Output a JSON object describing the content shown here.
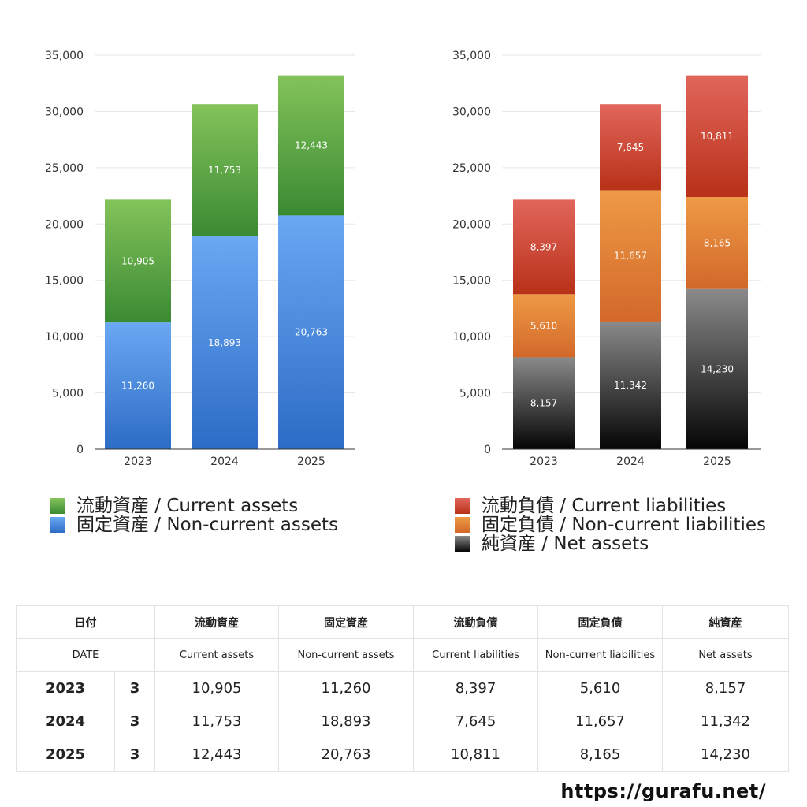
{
  "chart_data": [
    {
      "type": "bar",
      "stacked": true,
      "categories": [
        "2023",
        "2024",
        "2025"
      ],
      "ylim": [
        0,
        35000
      ],
      "yticks": [
        0,
        5000,
        10000,
        15000,
        20000,
        25000,
        30000,
        35000
      ],
      "grid": true,
      "series": [
        {
          "name": "固定資産 / Non-current assets",
          "values": [
            11260,
            18893,
            20763
          ],
          "color_top": "#6aa8f3",
          "color_bottom": "#2d6cc5"
        },
        {
          "name": "流動資産 / Current assets",
          "values": [
            10905,
            11753,
            12443
          ],
          "color_top": "#84c35a",
          "color_bottom": "#3a8a33"
        }
      ]
    },
    {
      "type": "bar",
      "stacked": true,
      "categories": [
        "2023",
        "2024",
        "2025"
      ],
      "ylim": [
        0,
        35000
      ],
      "yticks": [
        0,
        5000,
        10000,
        15000,
        20000,
        25000,
        30000,
        35000
      ],
      "grid": true,
      "series": [
        {
          "name": "純資産 / Net assets",
          "values": [
            8157,
            11342,
            14230
          ],
          "color_top": "#8a8a8a",
          "color_bottom": "#050505"
        },
        {
          "name": "固定負債 / Non-current liabilities",
          "values": [
            5610,
            11657,
            8165
          ],
          "color_top": "#ee9a45",
          "color_bottom": "#d2682a"
        },
        {
          "name": "流動負債 / Current liabilities",
          "values": [
            8397,
            7645,
            10811
          ],
          "color_top": "#e2665c",
          "color_bottom": "#b83118"
        }
      ]
    }
  ],
  "legends": {
    "assets": [
      {
        "label": "流動資産 / Current assets",
        "color_top": "#84c35a",
        "color_bottom": "#3a8a33"
      },
      {
        "label": "固定資産 / Non-current assets",
        "color_top": "#6aa8f3",
        "color_bottom": "#2d6cc5"
      }
    ],
    "liabilities": [
      {
        "label": "流動負債 / Current liabilities",
        "color_top": "#e2665c",
        "color_bottom": "#b83118"
      },
      {
        "label": "固定負債 / Non-current liabilities",
        "color_top": "#ee9a45",
        "color_bottom": "#d2682a"
      },
      {
        "label": "純資産 / Net assets",
        "color_top": "#8a8a8a",
        "color_bottom": "#050505"
      }
    ]
  },
  "table": {
    "header_jp": [
      "日付",
      "流動資産",
      "固定資産",
      "流動負債",
      "固定負債",
      "純資産"
    ],
    "header_en": [
      "DATE",
      "Current assets",
      "Non-current assets",
      "Current liabilities",
      "Non-current liabilities",
      "Net assets"
    ],
    "rows": [
      {
        "year": "2023",
        "month": "3",
        "values": [
          "10,905",
          "11,260",
          "8,397",
          "5,610",
          "8,157"
        ]
      },
      {
        "year": "2024",
        "month": "3",
        "values": [
          "11,753",
          "18,893",
          "7,645",
          "11,657",
          "11,342"
        ]
      },
      {
        "year": "2025",
        "month": "3",
        "values": [
          "12,443",
          "20,763",
          "10,811",
          "8,165",
          "14,230"
        ]
      }
    ]
  },
  "footer_url": "https://gurafu.net/"
}
